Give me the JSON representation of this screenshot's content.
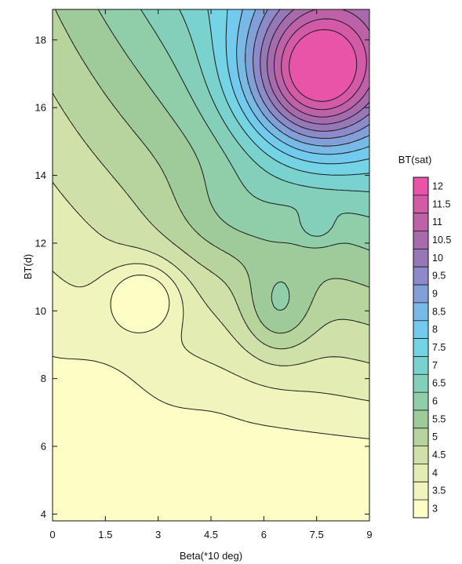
{
  "chart_data": {
    "type": "contour",
    "xlabel": "Beta(*10 deg)",
    "ylabel": "BT(d)",
    "xlim": [
      0,
      9
    ],
    "ylim": [
      3.8,
      18.9
    ],
    "x_ticks": [
      0,
      1.5,
      3,
      4.5,
      6,
      7.5,
      9
    ],
    "x_tick_labels": [
      "0",
      "1.5",
      "3",
      "4.5",
      "6",
      "7.5",
      "9"
    ],
    "y_ticks": [
      4,
      6,
      8,
      10,
      12,
      14,
      16,
      18
    ],
    "y_tick_labels": [
      "4",
      "6",
      "8",
      "10",
      "12",
      "14",
      "16",
      "18"
    ],
    "grid": false,
    "colorbar": {
      "title": "BT(sat)",
      "placement": "right",
      "levels": [
        3,
        3.5,
        4,
        4.5,
        5,
        5.5,
        6,
        6.5,
        7,
        7.5,
        8,
        8.5,
        9,
        9.5,
        10,
        10.5,
        11,
        11.5,
        12
      ],
      "labels": [
        "3",
        "3.5",
        "4",
        "4.5",
        "5",
        "5.5",
        "6",
        "6.5",
        "7",
        "7.5",
        "8",
        "8.5",
        "9",
        "9.5",
        "10",
        "10.5",
        "11",
        "11.5",
        "12"
      ],
      "colors": [
        "#fdfdc6",
        "#f1f5bd",
        "#e2ecb3",
        "#cfe0a8",
        "#b8d49d",
        "#9fcb9b",
        "#90cda9",
        "#84cfba",
        "#7ad2ce",
        "#74d3e4",
        "#72cbef",
        "#79b9e6",
        "#829fd8",
        "#8c8ac9",
        "#9678b6",
        "#a66aad",
        "#bd62a8",
        "#d35aa7",
        "#e854a8"
      ]
    },
    "features": [
      {
        "label": "global maximum",
        "x": 7.5,
        "y": 17.0,
        "value": 12
      },
      {
        "label": "local maximum",
        "x": 3.0,
        "y": 10.4,
        "value": 4.5
      },
      {
        "label": "local minimum",
        "x": 6.5,
        "y": 10.0,
        "value": 8
      },
      {
        "label": "local maximum",
        "x": 7.5,
        "y": 12.5,
        "value": 6.5
      },
      {
        "label": "global minimum",
        "x": 4.5,
        "y": 4.0,
        "value": 3
      }
    ]
  }
}
